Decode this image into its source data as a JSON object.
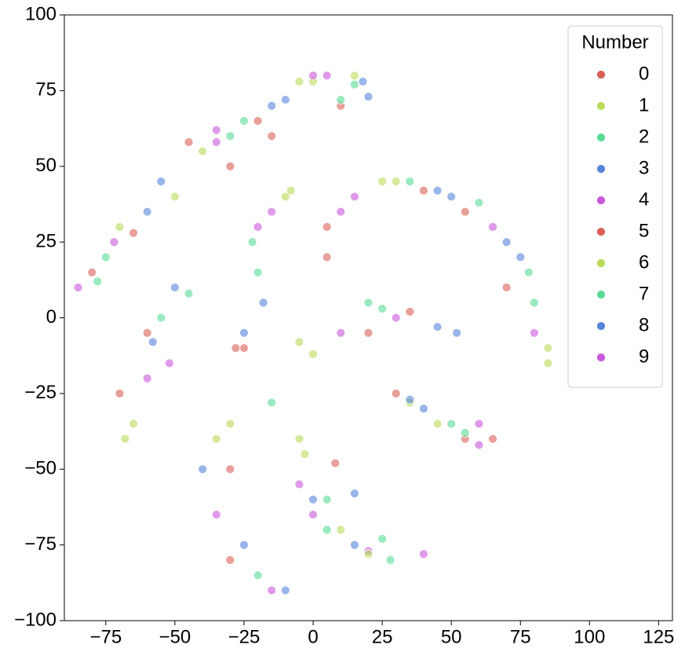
{
  "chart_data": {
    "type": "scatter",
    "xlim": [
      -90,
      130
    ],
    "ylim": [
      -100,
      100
    ],
    "xticks": [
      {
        "value": -75,
        "label": "−75"
      },
      {
        "value": -50,
        "label": "−50"
      },
      {
        "value": -25,
        "label": "−25"
      },
      0,
      25,
      50,
      75,
      100,
      125
    ],
    "yticks": [
      {
        "value": -100,
        "label": "−100"
      },
      {
        "value": -75,
        "label": "−75"
      },
      {
        "value": -50,
        "label": "−50"
      },
      {
        "value": -25,
        "label": "−25"
      },
      0,
      25,
      50,
      75,
      100
    ],
    "grid": false,
    "legend_title": "Number",
    "legend_position": "upper-right",
    "series": [
      {
        "name": "0",
        "color": "#db5f57",
        "x": [
          -80,
          -45,
          -20,
          10,
          -60,
          -25,
          5,
          40,
          70,
          20,
          -30,
          55
        ],
        "values": [
          15,
          58,
          65,
          70,
          -5,
          -10,
          20,
          42,
          10,
          -5,
          -50,
          -40
        ]
      },
      {
        "name": "1",
        "color": "#b9db57",
        "x": [
          -70,
          -40,
          0,
          -65,
          -10,
          30,
          85,
          0,
          -35,
          -3,
          10,
          35
        ],
        "values": [
          30,
          55,
          78,
          -35,
          40,
          45,
          -15,
          -12,
          -40,
          -45,
          -70,
          -28
        ]
      },
      {
        "name": "2",
        "color": "#57db94",
        "x": [
          -75,
          -30,
          15,
          -55,
          -20,
          60,
          80,
          25,
          -15,
          5,
          25,
          50
        ],
        "values": [
          20,
          60,
          77,
          0,
          15,
          38,
          5,
          3,
          -28,
          -60,
          -73,
          -35
        ]
      },
      {
        "name": "3",
        "color": "#5784db",
        "x": [
          -55,
          -10,
          20,
          -50,
          -25,
          45,
          75,
          45,
          -25,
          15,
          40,
          -10
        ],
        "values": [
          45,
          72,
          73,
          10,
          -5,
          42,
          20,
          -3,
          -75,
          -58,
          -30,
          -90
        ]
      },
      {
        "name": "4",
        "color": "#c957db",
        "x": [
          -85,
          -35,
          5,
          -60,
          -15,
          15,
          65,
          10,
          -35,
          0,
          20,
          60
        ],
        "values": [
          10,
          62,
          80,
          -20,
          35,
          40,
          30,
          -5,
          -65,
          -65,
          -77,
          -42
        ]
      },
      {
        "name": "5",
        "color": "#db5f57",
        "x": [
          -65,
          -30,
          -15,
          -70,
          -28,
          5,
          55,
          35,
          -30,
          8,
          30,
          65
        ],
        "values": [
          28,
          50,
          60,
          -25,
          -10,
          30,
          35,
          2,
          -80,
          -48,
          -25,
          -40
        ]
      },
      {
        "name": "6",
        "color": "#b9db57",
        "x": [
          -50,
          -5,
          15,
          -68,
          -8,
          25,
          85,
          -5,
          -30,
          20,
          -5,
          45
        ],
        "values": [
          40,
          78,
          80,
          -40,
          42,
          45,
          -10,
          -8,
          -35,
          -78,
          -40,
          -35
        ]
      },
      {
        "name": "7",
        "color": "#57db94",
        "x": [
          -78,
          -25,
          10,
          -45,
          -22,
          35,
          78,
          20,
          -20,
          5,
          28,
          55
        ],
        "values": [
          12,
          65,
          72,
          8,
          25,
          45,
          15,
          5,
          -85,
          -70,
          -80,
          -38
        ]
      },
      {
        "name": "8",
        "color": "#5784db",
        "x": [
          -60,
          -15,
          18,
          -58,
          -18,
          50,
          70,
          52,
          -40,
          15,
          35,
          0
        ],
        "values": [
          35,
          70,
          78,
          -8,
          5,
          40,
          25,
          -5,
          -50,
          -75,
          -27,
          -60
        ]
      },
      {
        "name": "9",
        "color": "#c957db",
        "x": [
          -72,
          -35,
          0,
          -52,
          -20,
          10,
          80,
          30,
          -15,
          -5,
          40,
          60
        ],
        "values": [
          25,
          58,
          80,
          -15,
          30,
          35,
          -5,
          0,
          -90,
          -55,
          -78,
          -35
        ]
      }
    ]
  }
}
